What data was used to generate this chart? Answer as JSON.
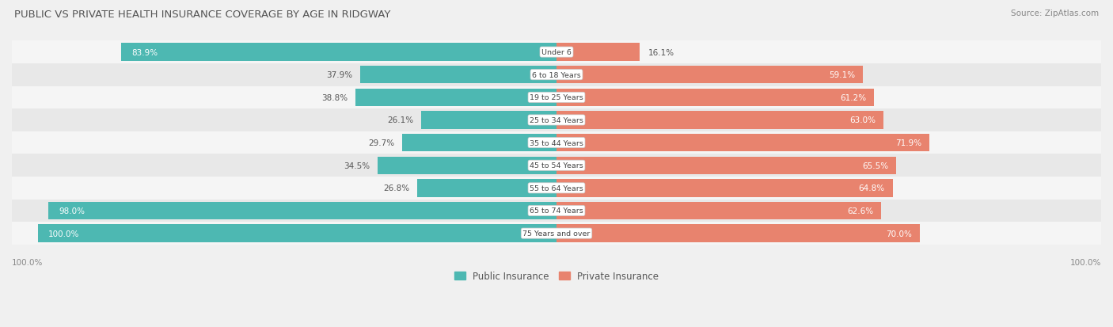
{
  "title": "PUBLIC VS PRIVATE HEALTH INSURANCE COVERAGE BY AGE IN RIDGWAY",
  "source": "Source: ZipAtlas.com",
  "categories": [
    "Under 6",
    "6 to 18 Years",
    "19 to 25 Years",
    "25 to 34 Years",
    "35 to 44 Years",
    "45 to 54 Years",
    "55 to 64 Years",
    "65 to 74 Years",
    "75 Years and over"
  ],
  "public_values": [
    83.9,
    37.9,
    38.8,
    26.1,
    29.7,
    34.5,
    26.8,
    98.0,
    100.0
  ],
  "private_values": [
    16.1,
    59.1,
    61.2,
    63.0,
    71.9,
    65.5,
    64.8,
    62.6,
    70.0
  ],
  "public_color": "#4db8b2",
  "private_color": "#e8836e",
  "bg_color": "#f0f0f0",
  "row_bg_even": "#f5f5f5",
  "row_bg_odd": "#e8e8e8",
  "legend_public": "Public Insurance",
  "legend_private": "Private Insurance",
  "axis_label_left": "100.0%",
  "axis_label_right": "100.0%",
  "title_color": "#555555",
  "source_color": "#888888"
}
